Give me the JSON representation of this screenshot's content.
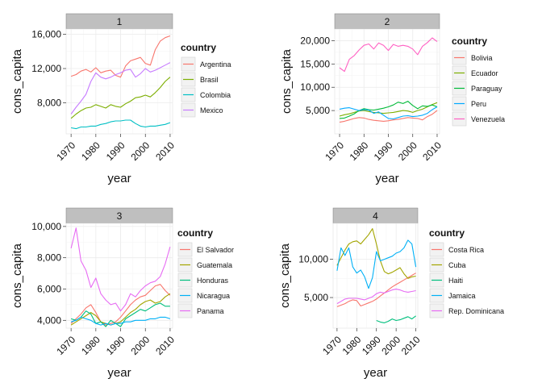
{
  "chart_data": [
    {
      "type": "line",
      "facet": "1",
      "xlabel": "year",
      "ylabel": "cons_capita",
      "xlim": [
        1968,
        2011
      ],
      "ylim": [
        4400,
        16600
      ],
      "xticks": [
        1970,
        1980,
        1990,
        2000,
        2010
      ],
      "xtick_labels": [
        "1970",
        "1980",
        "1990",
        "2000",
        "2010"
      ],
      "yticks": [
        8000,
        12000,
        16000
      ],
      "ytick_labels": [
        "8,000",
        "12,000",
        "16,000"
      ],
      "legend_title": "country",
      "grid": true,
      "legend_position": "right",
      "series": [
        {
          "name": "Argentina",
          "color": "#F8766D",
          "x": [
            1970,
            1972,
            1974,
            1976,
            1978,
            1980,
            1982,
            1984,
            1986,
            1988,
            1990,
            1992,
            1994,
            1996,
            1998,
            2000,
            2002,
            2004,
            2006,
            2008,
            2010
          ],
          "y": [
            11100,
            11300,
            11700,
            11900,
            11600,
            12100,
            11500,
            11700,
            11800,
            11200,
            11000,
            12300,
            12900,
            13100,
            13300,
            12600,
            12400,
            14200,
            15200,
            15600,
            15800
          ]
        },
        {
          "name": "Brasil",
          "color": "#7CAE00",
          "x": [
            1970,
            1972,
            1974,
            1976,
            1978,
            1980,
            1982,
            1984,
            1986,
            1988,
            1990,
            1992,
            1994,
            1996,
            1998,
            2000,
            2002,
            2004,
            2006,
            2008,
            2010
          ],
          "y": [
            6200,
            6700,
            7100,
            7400,
            7500,
            7800,
            7600,
            7400,
            7800,
            7600,
            7500,
            7900,
            8200,
            8600,
            8700,
            8900,
            8700,
            9200,
            9800,
            10500,
            11000
          ]
        },
        {
          "name": "Colombia",
          "color": "#00BFC4",
          "x": [
            1970,
            1972,
            1974,
            1976,
            1978,
            1980,
            1982,
            1984,
            1986,
            1988,
            1990,
            1992,
            1994,
            1996,
            1998,
            2000,
            2002,
            2004,
            2006,
            2008,
            2010
          ],
          "y": [
            5100,
            5000,
            5200,
            5200,
            5300,
            5300,
            5500,
            5600,
            5800,
            5900,
            5900,
            6000,
            6000,
            5600,
            5300,
            5200,
            5300,
            5300,
            5400,
            5500,
            5700
          ]
        },
        {
          "name": "Mexico",
          "color": "#C77CFF",
          "x": [
            1970,
            1972,
            1974,
            1976,
            1978,
            1980,
            1982,
            1984,
            1986,
            1988,
            1990,
            1992,
            1994,
            1996,
            1998,
            2000,
            2002,
            2004,
            2006,
            2008,
            2010
          ],
          "y": [
            6700,
            7500,
            8200,
            9000,
            10500,
            11500,
            11000,
            10800,
            11000,
            11300,
            11500,
            11800,
            11900,
            11000,
            11400,
            12000,
            11600,
            11800,
            12100,
            12400,
            12700
          ]
        }
      ]
    },
    {
      "type": "line",
      "facet": "2",
      "xlabel": "year",
      "ylabel": "cons_capita",
      "xlim": [
        1968,
        2011
      ],
      "ylim": [
        0,
        22500
      ],
      "xticks": [
        1970,
        1980,
        1990,
        2000,
        2010
      ],
      "xtick_labels": [
        "1970",
        "1980",
        "1990",
        "2000",
        "2010"
      ],
      "yticks": [
        5000,
        10000,
        15000,
        20000
      ],
      "ytick_labels": [
        "5,000",
        "10,000",
        "15,000",
        "20,000"
      ],
      "legend_title": "country",
      "grid": true,
      "legend_position": "right",
      "series": [
        {
          "name": "Bolivia",
          "color": "#F8766D",
          "x": [
            1970,
            1972,
            1974,
            1976,
            1978,
            1980,
            1982,
            1984,
            1986,
            1988,
            1990,
            1992,
            1994,
            1996,
            1998,
            2000,
            2002,
            2004,
            2006,
            2008,
            2010
          ],
          "y": [
            2500,
            2700,
            3000,
            3300,
            3500,
            3400,
            3100,
            2900,
            2800,
            2700,
            2800,
            3000,
            3100,
            3300,
            3500,
            3400,
            3300,
            3000,
            3700,
            4200,
            5000
          ]
        },
        {
          "name": "Ecuador",
          "color": "#7CAE00",
          "x": [
            1970,
            1972,
            1974,
            1976,
            1978,
            1980,
            1982,
            1984,
            1986,
            1988,
            1990,
            1992,
            1994,
            1996,
            1998,
            2000,
            2002,
            2004,
            2006,
            2008,
            2010
          ],
          "y": [
            3800,
            4100,
            4300,
            4600,
            4900,
            5000,
            4800,
            4600,
            4500,
            4400,
            4500,
            4600,
            4800,
            5000,
            4900,
            4600,
            5000,
            5300,
            5800,
            6300,
            6700
          ]
        },
        {
          "name": "Paraguay",
          "color": "#00BA38",
          "x": [
            1970,
            1972,
            1974,
            1976,
            1978,
            1980,
            1982,
            1984,
            1986,
            1988,
            1990,
            1992,
            1994,
            1996,
            1998,
            2000,
            2002,
            2004,
            2006,
            2008,
            2010
          ],
          "y": [
            3300,
            3400,
            3800,
            4300,
            5000,
            5400,
            5200,
            5100,
            5300,
            5500,
            5800,
            6200,
            6800,
            6500,
            7000,
            6100,
            5400,
            6000,
            5900,
            6200,
            5800
          ]
        },
        {
          "name": "Peru",
          "color": "#00A9FF",
          "x": [
            1970,
            1972,
            1974,
            1976,
            1978,
            1980,
            1982,
            1984,
            1986,
            1988,
            1990,
            1992,
            1994,
            1996,
            1998,
            2000,
            2002,
            2004,
            2006,
            2008,
            2010
          ],
          "y": [
            5300,
            5500,
            5600,
            5300,
            5000,
            5200,
            5100,
            4400,
            4700,
            4000,
            3300,
            3200,
            3500,
            3800,
            3900,
            3700,
            3800,
            4000,
            4400,
            5200,
            5800
          ]
        },
        {
          "name": "Venezuela",
          "color": "#FF61C3",
          "x": [
            1970,
            1972,
            1974,
            1976,
            1978,
            1980,
            1982,
            1984,
            1986,
            1988,
            1990,
            1992,
            1994,
            1996,
            1998,
            2000,
            2002,
            2004,
            2006,
            2008,
            2010
          ],
          "y": [
            14200,
            13400,
            16000,
            16800,
            18000,
            19000,
            19300,
            18200,
            19500,
            19000,
            17900,
            19200,
            18800,
            19000,
            18800,
            18200,
            17000,
            18800,
            19600,
            20600,
            19800
          ]
        }
      ]
    },
    {
      "type": "line",
      "facet": "3",
      "xlabel": "year",
      "ylabel": "cons_capita",
      "xlim": [
        1968,
        2011
      ],
      "ylim": [
        3500,
        10200
      ],
      "xticks": [
        1970,
        1980,
        1990,
        2000,
        2010
      ],
      "xtick_labels": [
        "1970",
        "1980",
        "1990",
        "2000",
        "2010"
      ],
      "yticks": [
        4000,
        6000,
        8000,
        10000
      ],
      "ytick_labels": [
        "4,000",
        "6,000",
        "8,000",
        "10,000"
      ],
      "legend_title": "country",
      "grid": true,
      "legend_position": "right",
      "series": [
        {
          "name": "El Salvador",
          "color": "#F8766D",
          "x": [
            1970,
            1972,
            1974,
            1976,
            1978,
            1980,
            1982,
            1984,
            1986,
            1988,
            1990,
            1992,
            1994,
            1996,
            1998,
            2000,
            2002,
            2004,
            2006,
            2008,
            2010
          ],
          "y": [
            3800,
            4100,
            4400,
            4800,
            5000,
            4500,
            3900,
            3700,
            3800,
            3900,
            4200,
            4600,
            5000,
            5300,
            5500,
            5600,
            5900,
            6200,
            6300,
            5900,
            5600
          ]
        },
        {
          "name": "Guatemala",
          "color": "#A3A500",
          "x": [
            1970,
            1972,
            1974,
            1976,
            1978,
            1980,
            1982,
            1984,
            1986,
            1988,
            1990,
            1992,
            1994,
            1996,
            1998,
            2000,
            2002,
            2004,
            2006,
            2008,
            2010
          ],
          "y": [
            3700,
            3900,
            4100,
            4300,
            4500,
            4300,
            3900,
            3800,
            3700,
            3800,
            3900,
            4200,
            4500,
            4700,
            5000,
            5200,
            5300,
            5100,
            5200,
            5500,
            5700
          ]
        },
        {
          "name": "Honduras",
          "color": "#00BF7D",
          "x": [
            1970,
            1972,
            1974,
            1976,
            1978,
            1980,
            1982,
            1984,
            1986,
            1988,
            1990,
            1992,
            1994,
            1996,
            1998,
            2000,
            2002,
            2004,
            2006,
            2008,
            2010
          ],
          "y": [
            4100,
            4000,
            4200,
            4600,
            4400,
            3800,
            3900,
            3600,
            4000,
            3800,
            3600,
            4100,
            4300,
            4500,
            4700,
            4600,
            4800,
            5000,
            5100,
            4900,
            4900
          ]
        },
        {
          "name": "Nicaragua",
          "color": "#00B0F6",
          "x": [
            1970,
            1972,
            1974,
            1976,
            1978,
            1980,
            1982,
            1984,
            1986,
            1988,
            1990,
            1992,
            1994,
            1996,
            1998,
            2000,
            2002,
            2004,
            2006,
            2008,
            2010
          ],
          "y": [
            3900,
            4000,
            4200,
            4100,
            4000,
            3800,
            3700,
            3800,
            3700,
            3800,
            3800,
            3900,
            3900,
            4000,
            4000,
            4000,
            4100,
            4100,
            4200,
            4200,
            4100
          ]
        },
        {
          "name": "Panama",
          "color": "#E76BF3",
          "x": [
            1970,
            1972,
            1974,
            1976,
            1978,
            1980,
            1982,
            1984,
            1986,
            1988,
            1990,
            1992,
            1994,
            1996,
            1998,
            2000,
            2002,
            2004,
            2006,
            2008,
            2010
          ],
          "y": [
            8600,
            9900,
            7800,
            7200,
            6100,
            6700,
            5700,
            5300,
            5000,
            5100,
            4600,
            5000,
            5700,
            5500,
            5900,
            6200,
            6400,
            6500,
            6800,
            7600,
            8700
          ]
        }
      ]
    },
    {
      "type": "line",
      "facet": "4",
      "xlabel": "year",
      "ylabel": "cons_capita",
      "xlim": [
        1968,
        2011
      ],
      "ylim": [
        1000,
        14700
      ],
      "xticks": [
        1970,
        1980,
        1990,
        2000,
        2010
      ],
      "xtick_labels": [
        "1970",
        "1980",
        "1990",
        "2000",
        "2010"
      ],
      "yticks": [
        5000,
        10000
      ],
      "ytick_labels": [
        "5,000",
        "10,000"
      ],
      "legend_title": "country",
      "grid": true,
      "legend_position": "right",
      "series": [
        {
          "name": "Costa Rica",
          "color": "#F8766D",
          "x": [
            1970,
            1972,
            1974,
            1976,
            1978,
            1980,
            1982,
            1984,
            1986,
            1988,
            1990,
            1992,
            1994,
            1996,
            1998,
            2000,
            2002,
            2004,
            2006,
            2008,
            2010
          ],
          "y": [
            3800,
            4000,
            4200,
            4500,
            4700,
            4600,
            3900,
            4100,
            4300,
            4500,
            4800,
            5200,
            5600,
            6000,
            6400,
            6700,
            7000,
            7300,
            7600,
            7900,
            8200
          ]
        },
        {
          "name": "Cuba",
          "color": "#A3A500",
          "x": [
            1970,
            1972,
            1974,
            1976,
            1978,
            1980,
            1982,
            1984,
            1986,
            1988,
            1990,
            1992,
            1994,
            1996,
            1998,
            2000,
            2002,
            2004,
            2006,
            2008,
            2010
          ],
          "y": [
            9200,
            10200,
            11200,
            12000,
            12300,
            12400,
            12000,
            12600,
            13200,
            14000,
            12000,
            9800,
            8400,
            8100,
            8300,
            8600,
            8900,
            8100,
            7500,
            7700,
            7800
          ]
        },
        {
          "name": "Haiti",
          "color": "#00BF7D",
          "x": [
            1990,
            1992,
            1994,
            1996,
            1998,
            2000,
            2002,
            2004,
            2006,
            2008,
            2010
          ],
          "y": [
            2000,
            1800,
            1700,
            1900,
            2200,
            2000,
            2100,
            2300,
            2500,
            2200,
            2600
          ]
        },
        {
          "name": "Jamaica",
          "color": "#00B0F6",
          "x": [
            1970,
            1972,
            1974,
            1976,
            1978,
            1980,
            1982,
            1984,
            1986,
            1988,
            1990,
            1992,
            1994,
            1996,
            1998,
            2000,
            2002,
            2004,
            2006,
            2008,
            2010
          ],
          "y": [
            8500,
            11500,
            10500,
            11500,
            9000,
            8200,
            8600,
            7700,
            6200,
            7600,
            11000,
            9800,
            10000,
            10200,
            10400,
            10800,
            11000,
            11500,
            12500,
            12000,
            9000
          ]
        },
        {
          "name": "Rep. Dominicana",
          "color": "#E76BF3",
          "x": [
            1970,
            1972,
            1974,
            1976,
            1978,
            1980,
            1982,
            1984,
            1986,
            1988,
            1990,
            1992,
            1994,
            1996,
            1998,
            2000,
            2002,
            2004,
            2006,
            2008,
            2010
          ],
          "y": [
            4200,
            4500,
            4800,
            4900,
            4900,
            4900,
            4800,
            4700,
            4900,
            5100,
            5500,
            5700,
            5600,
            5800,
            6000,
            6100,
            6000,
            5800,
            5700,
            5800,
            5900
          ]
        }
      ]
    }
  ]
}
